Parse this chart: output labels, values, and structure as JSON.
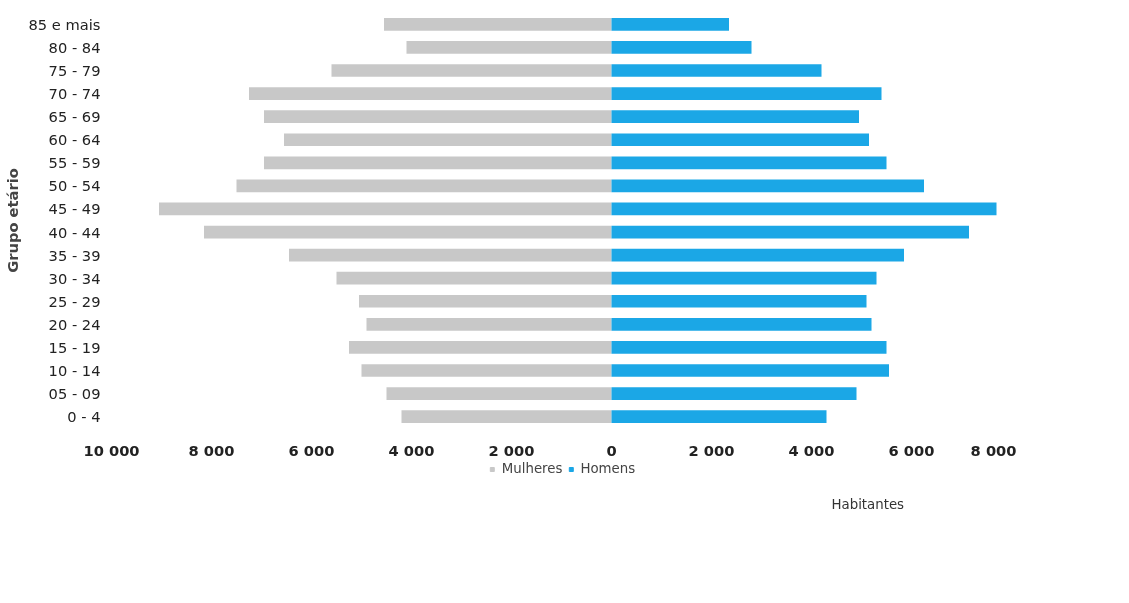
{
  "chart_data": {
    "type": "bar",
    "orientation": "horizontal",
    "stacked": true,
    "annotations": [
      "Habitantes"
    ],
    "ylabel": "Grupo etário",
    "categories": [
      "85 e mais",
      "80 - 84",
      "75 - 79",
      "70 - 74",
      "65 - 69",
      "60 - 64",
      "55 - 59",
      "50 - 54",
      "45 - 49",
      "40 - 44",
      "35 - 39",
      "30 - 34",
      "25 - 29",
      "20 - 24",
      "15 - 19",
      "10 - 14",
      "05 - 09",
      "0 - 4"
    ],
    "series": [
      {
        "name": "Mulheres",
        "color": "#c8c8c8",
        "values": [
          -4550,
          -4100,
          -5600,
          -7250,
          -6950,
          -6550,
          -6950,
          -7500,
          -9050,
          -8150,
          -6450,
          -5500,
          -5050,
          -4900,
          -5250,
          -5000,
          -4500,
          -4200
        ]
      },
      {
        "name": "Homens",
        "color": "#1ba7e6",
        "values": [
          2350,
          2800,
          4200,
          5400,
          4950,
          5150,
          5500,
          6250,
          7700,
          7150,
          5850,
          5300,
          5100,
          5200,
          5500,
          5550,
          4900,
          4300
        ]
      }
    ],
    "xlim": [
      -10000,
      8000
    ],
    "xticks": [
      {
        "value": -10000,
        "label": "10 000"
      },
      {
        "value": -8000,
        "label": "8 000"
      },
      {
        "value": -6000,
        "label": "6 000"
      },
      {
        "value": -4000,
        "label": "4 000"
      },
      {
        "value": -2000,
        "label": "2 000"
      },
      0,
      {
        "value": 2000,
        "label": "2 000"
      },
      {
        "value": 4000,
        "label": "4 000"
      },
      {
        "value": 6000,
        "label": "6 000"
      },
      {
        "value": 8000,
        "label": "8 000"
      }
    ],
    "legend": "bottom",
    "grid": false
  }
}
